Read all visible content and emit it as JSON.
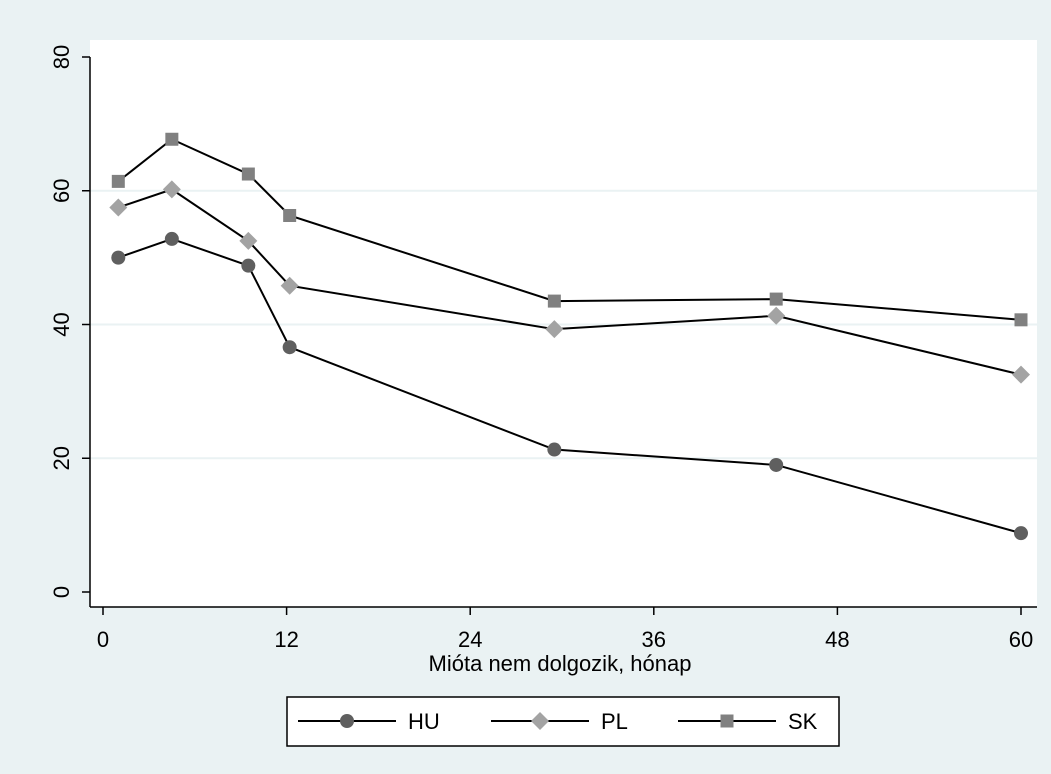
{
  "chart_data": {
    "type": "line",
    "xlabel": "Mióta nem dolgozik, hónap",
    "ylabel": "",
    "xlim": [
      0,
      60
    ],
    "ylim": [
      0,
      80
    ],
    "xticks": [
      0,
      12,
      24,
      36,
      48,
      60
    ],
    "yticks": [
      0,
      20,
      40,
      60,
      80
    ],
    "x": [
      1,
      4.5,
      9.5,
      12.2,
      29.5,
      44,
      60
    ],
    "grid": "horizontal",
    "legend_position": "bottom",
    "series": [
      {
        "name": "HU",
        "marker": "circle",
        "color": "#5f5f5f",
        "values": [
          50.0,
          52.8,
          48.8,
          36.6,
          21.3,
          19.0,
          8.8
        ]
      },
      {
        "name": "PL",
        "marker": "diamond",
        "color": "#a3a3a3",
        "values": [
          57.5,
          60.2,
          52.5,
          45.8,
          39.3,
          41.3,
          32.5
        ]
      },
      {
        "name": "SK",
        "marker": "square",
        "color": "#808080",
        "values": [
          61.4,
          67.7,
          62.5,
          56.3,
          43.5,
          43.8,
          40.7
        ]
      }
    ]
  }
}
